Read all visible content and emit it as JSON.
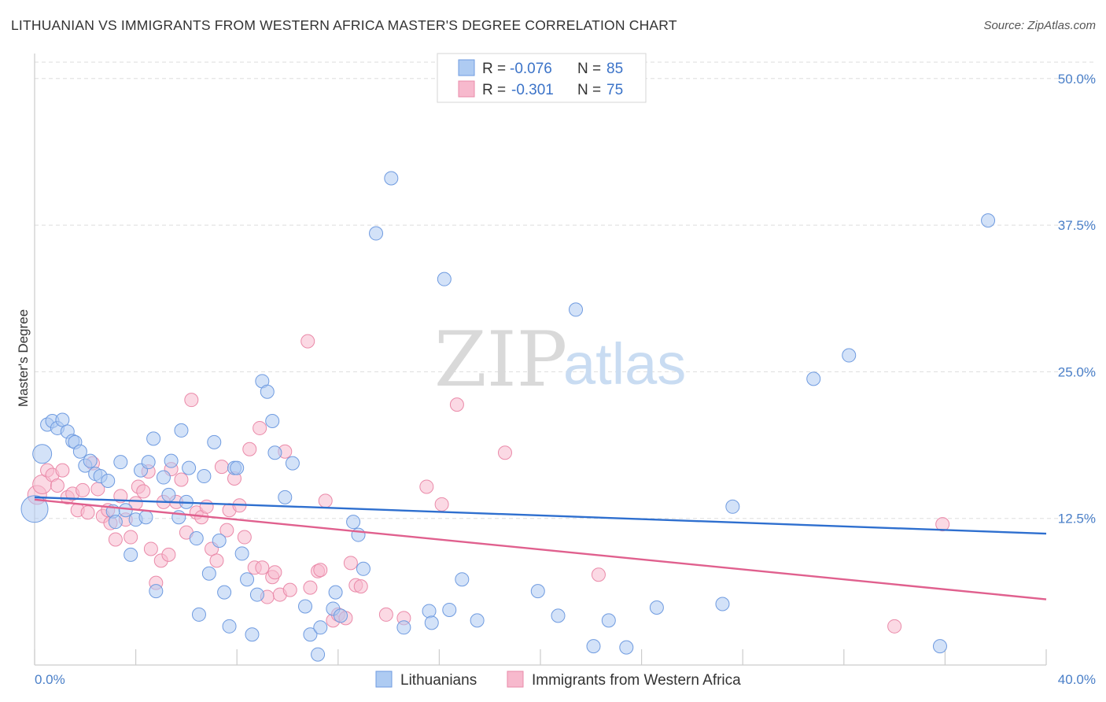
{
  "title": "LITHUANIAN VS IMMIGRANTS FROM WESTERN AFRICA MASTER'S DEGREE CORRELATION CHART",
  "source": "Source: ZipAtlas.com",
  "watermark": {
    "zip": "ZIP",
    "atlas": "atlas"
  },
  "legend": {
    "rows": [
      {
        "r_label": "R =",
        "r_value": "-0.076",
        "n_label": "N =",
        "n_value": "85",
        "color": "#aecbf2"
      },
      {
        "r_label": "R =",
        "r_value": "-0.301",
        "n_label": "N =",
        "n_value": "75",
        "color": "#f7b9cd"
      }
    ]
  },
  "bottom_legend": {
    "items": [
      "Lithuanians",
      "Immigrants from Western Africa"
    ]
  },
  "colors": {
    "blue_fill": "#aecbf2",
    "blue_stroke": "#6f9be0",
    "blue_line": "#2e6fcf",
    "pink_fill": "#f7b9cd",
    "pink_stroke": "#ea8aa9",
    "pink_line": "#e0608e",
    "axis_text": "#4a7fc8",
    "grid": "#dddddd"
  },
  "chart_data": {
    "type": "scatter",
    "title": "LITHUANIAN VS IMMIGRANTS FROM WESTERN AFRICA MASTER'S DEGREE CORRELATION CHART",
    "xlabel": "",
    "ylabel": "Master's Degree",
    "xlim": [
      0,
      40
    ],
    "ylim": [
      0,
      52
    ],
    "x_tick_labels": [
      "0.0%",
      "40.0%"
    ],
    "y_ticks": [
      12.5,
      25.0,
      37.5,
      50.0
    ],
    "y_tick_labels": [
      "12.5%",
      "25.0%",
      "37.5%",
      "50.0%"
    ],
    "grid": true,
    "series": [
      {
        "name": "Lithuanians",
        "trend": {
          "x": [
            0,
            40
          ],
          "y": [
            14.3,
            11.2
          ]
        },
        "points": [
          {
            "x": 0.0,
            "y": 13.3,
            "s": 2
          },
          {
            "x": 0.3,
            "y": 18.0,
            "s": 1
          },
          {
            "x": 0.5,
            "y": 20.5
          },
          {
            "x": 0.7,
            "y": 20.8
          },
          {
            "x": 0.9,
            "y": 20.2
          },
          {
            "x": 1.1,
            "y": 20.9
          },
          {
            "x": 1.3,
            "y": 19.9
          },
          {
            "x": 1.5,
            "y": 19.1
          },
          {
            "x": 1.6,
            "y": 19.0
          },
          {
            "x": 1.8,
            "y": 18.2
          },
          {
            "x": 2.0,
            "y": 17.0
          },
          {
            "x": 2.2,
            "y": 17.4
          },
          {
            "x": 2.4,
            "y": 16.3
          },
          {
            "x": 2.6,
            "y": 16.1
          },
          {
            "x": 2.9,
            "y": 15.7
          },
          {
            "x": 3.1,
            "y": 13.1
          },
          {
            "x": 3.2,
            "y": 12.2
          },
          {
            "x": 3.4,
            "y": 17.3
          },
          {
            "x": 3.6,
            "y": 13.2
          },
          {
            "x": 3.8,
            "y": 9.4
          },
          {
            "x": 4.0,
            "y": 12.4
          },
          {
            "x": 4.2,
            "y": 16.6
          },
          {
            "x": 4.4,
            "y": 12.6
          },
          {
            "x": 4.5,
            "y": 17.3
          },
          {
            "x": 4.7,
            "y": 19.3
          },
          {
            "x": 4.8,
            "y": 6.3
          },
          {
            "x": 5.1,
            "y": 16.0
          },
          {
            "x": 5.3,
            "y": 14.5
          },
          {
            "x": 5.4,
            "y": 17.4
          },
          {
            "x": 5.7,
            "y": 12.6
          },
          {
            "x": 5.8,
            "y": 20.0
          },
          {
            "x": 6.0,
            "y": 13.9
          },
          {
            "x": 6.1,
            "y": 16.8
          },
          {
            "x": 6.4,
            "y": 10.8
          },
          {
            "x": 6.5,
            "y": 4.3
          },
          {
            "x": 6.7,
            "y": 16.1
          },
          {
            "x": 6.9,
            "y": 7.8
          },
          {
            "x": 7.1,
            "y": 19.0
          },
          {
            "x": 7.3,
            "y": 10.6
          },
          {
            "x": 7.5,
            "y": 6.2
          },
          {
            "x": 7.7,
            "y": 3.3
          },
          {
            "x": 7.9,
            "y": 16.8
          },
          {
            "x": 8.0,
            "y": 16.8
          },
          {
            "x": 8.2,
            "y": 9.5
          },
          {
            "x": 8.4,
            "y": 7.3
          },
          {
            "x": 8.6,
            "y": 2.6
          },
          {
            "x": 8.8,
            "y": 6.0
          },
          {
            "x": 9.0,
            "y": 24.2
          },
          {
            "x": 9.2,
            "y": 23.3
          },
          {
            "x": 9.4,
            "y": 20.8
          },
          {
            "x": 9.5,
            "y": 18.1
          },
          {
            "x": 9.9,
            "y": 14.3
          },
          {
            "x": 10.2,
            "y": 17.2
          },
          {
            "x": 10.7,
            "y": 5.0
          },
          {
            "x": 10.9,
            "y": 2.6
          },
          {
            "x": 11.2,
            "y": 0.9
          },
          {
            "x": 11.3,
            "y": 3.2
          },
          {
            "x": 11.8,
            "y": 4.8
          },
          {
            "x": 11.9,
            "y": 6.2
          },
          {
            "x": 12.1,
            "y": 4.2
          },
          {
            "x": 12.6,
            "y": 12.2
          },
          {
            "x": 12.8,
            "y": 11.1
          },
          {
            "x": 13.0,
            "y": 8.2
          },
          {
            "x": 13.5,
            "y": 36.8
          },
          {
            "x": 14.1,
            "y": 41.5
          },
          {
            "x": 14.6,
            "y": 3.2
          },
          {
            "x": 15.6,
            "y": 4.6
          },
          {
            "x": 15.7,
            "y": 3.6
          },
          {
            "x": 16.2,
            "y": 32.9
          },
          {
            "x": 16.4,
            "y": 4.7
          },
          {
            "x": 16.9,
            "y": 7.3
          },
          {
            "x": 17.5,
            "y": 3.8
          },
          {
            "x": 19.9,
            "y": 6.3
          },
          {
            "x": 20.7,
            "y": 4.2
          },
          {
            "x": 21.4,
            "y": 30.3
          },
          {
            "x": 22.1,
            "y": 1.6
          },
          {
            "x": 22.7,
            "y": 3.8
          },
          {
            "x": 23.4,
            "y": 1.5
          },
          {
            "x": 24.6,
            "y": 4.9
          },
          {
            "x": 27.2,
            "y": 5.2
          },
          {
            "x": 27.6,
            "y": 13.5
          },
          {
            "x": 30.8,
            "y": 24.4
          },
          {
            "x": 32.2,
            "y": 26.4
          },
          {
            "x": 35.8,
            "y": 1.6
          },
          {
            "x": 37.7,
            "y": 37.9
          }
        ]
      },
      {
        "name": "Immigrants from Western Africa",
        "trend": {
          "x": [
            0,
            40
          ],
          "y": [
            14.1,
            5.6
          ]
        },
        "points": [
          {
            "x": 0.1,
            "y": 14.5,
            "s": 1
          },
          {
            "x": 0.3,
            "y": 15.4,
            "s": 1
          },
          {
            "x": 0.5,
            "y": 16.6
          },
          {
            "x": 0.7,
            "y": 16.2
          },
          {
            "x": 0.9,
            "y": 15.3
          },
          {
            "x": 1.1,
            "y": 16.6
          },
          {
            "x": 1.3,
            "y": 14.3
          },
          {
            "x": 1.5,
            "y": 14.6
          },
          {
            "x": 1.7,
            "y": 13.2
          },
          {
            "x": 1.9,
            "y": 14.9
          },
          {
            "x": 2.1,
            "y": 13.0
          },
          {
            "x": 2.3,
            "y": 17.2
          },
          {
            "x": 2.5,
            "y": 15.0
          },
          {
            "x": 2.7,
            "y": 12.7
          },
          {
            "x": 2.9,
            "y": 13.2
          },
          {
            "x": 3.0,
            "y": 12.1
          },
          {
            "x": 3.2,
            "y": 10.7
          },
          {
            "x": 3.4,
            "y": 14.4
          },
          {
            "x": 3.6,
            "y": 12.4
          },
          {
            "x": 3.8,
            "y": 10.9
          },
          {
            "x": 4.0,
            "y": 13.8
          },
          {
            "x": 4.1,
            "y": 15.2
          },
          {
            "x": 4.3,
            "y": 14.8
          },
          {
            "x": 4.5,
            "y": 16.5
          },
          {
            "x": 4.6,
            "y": 9.9
          },
          {
            "x": 4.8,
            "y": 7.0
          },
          {
            "x": 5.0,
            "y": 8.9
          },
          {
            "x": 5.1,
            "y": 13.9
          },
          {
            "x": 5.3,
            "y": 9.4
          },
          {
            "x": 5.4,
            "y": 16.7
          },
          {
            "x": 5.6,
            "y": 13.9
          },
          {
            "x": 5.8,
            "y": 15.8
          },
          {
            "x": 6.0,
            "y": 11.3
          },
          {
            "x": 6.2,
            "y": 22.6
          },
          {
            "x": 6.4,
            "y": 13.0
          },
          {
            "x": 6.6,
            "y": 12.6
          },
          {
            "x": 6.8,
            "y": 13.5
          },
          {
            "x": 7.0,
            "y": 9.9
          },
          {
            "x": 7.2,
            "y": 8.9
          },
          {
            "x": 7.4,
            "y": 16.9
          },
          {
            "x": 7.6,
            "y": 11.5
          },
          {
            "x": 7.7,
            "y": 13.2
          },
          {
            "x": 7.9,
            "y": 15.9
          },
          {
            "x": 8.1,
            "y": 13.6
          },
          {
            "x": 8.3,
            "y": 10.9
          },
          {
            "x": 8.5,
            "y": 18.4
          },
          {
            "x": 8.7,
            "y": 8.3
          },
          {
            "x": 8.9,
            "y": 20.2
          },
          {
            "x": 9.0,
            "y": 8.3
          },
          {
            "x": 9.2,
            "y": 5.8
          },
          {
            "x": 9.4,
            "y": 7.5
          },
          {
            "x": 9.5,
            "y": 7.9
          },
          {
            "x": 9.7,
            "y": 6.0
          },
          {
            "x": 9.9,
            "y": 18.2
          },
          {
            "x": 10.1,
            "y": 6.4
          },
          {
            "x": 10.8,
            "y": 27.6
          },
          {
            "x": 10.9,
            "y": 6.6
          },
          {
            "x": 11.2,
            "y": 8.0
          },
          {
            "x": 11.3,
            "y": 8.1
          },
          {
            "x": 11.5,
            "y": 14.0
          },
          {
            "x": 11.8,
            "y": 3.8
          },
          {
            "x": 12.0,
            "y": 4.3
          },
          {
            "x": 12.3,
            "y": 4.0
          },
          {
            "x": 12.5,
            "y": 8.7
          },
          {
            "x": 12.7,
            "y": 6.8
          },
          {
            "x": 12.9,
            "y": 6.7
          },
          {
            "x": 13.9,
            "y": 4.3
          },
          {
            "x": 14.6,
            "y": 4.0
          },
          {
            "x": 15.5,
            "y": 15.2
          },
          {
            "x": 16.1,
            "y": 13.7
          },
          {
            "x": 16.7,
            "y": 22.2
          },
          {
            "x": 18.6,
            "y": 18.1
          },
          {
            "x": 22.3,
            "y": 7.7
          },
          {
            "x": 34.0,
            "y": 3.3
          },
          {
            "x": 35.9,
            "y": 12.0
          }
        ]
      }
    ]
  }
}
